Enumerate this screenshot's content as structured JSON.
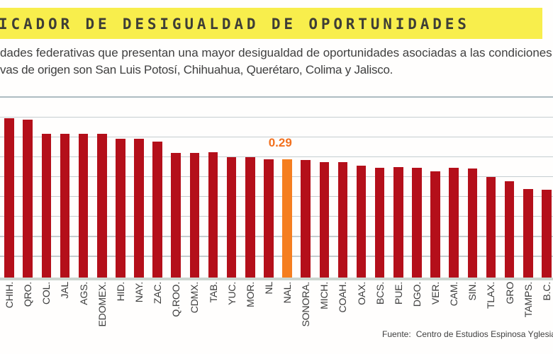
{
  "title": {
    "text": "ICADOR DE DESIGUALDAD DE OPORTUNIDADES",
    "highlight_color": "#F8EE4C",
    "text_color": "#3E3E36"
  },
  "subtitle": {
    "line1": "dades federativas que presentan una mayor desigualdad de oportunidades asociadas a las condiciones",
    "line2": "vas de origen son San Luis Potosí, Chihuahua, Querétaro, Colima y Jalisco."
  },
  "source": {
    "label": "Fuente:",
    "text": "Centro de Estudios Espinosa Yglesias"
  },
  "annotation": {
    "value_label": "0.29",
    "color": "#F2701E"
  },
  "colors": {
    "bar": "#B40F1A",
    "bar_highlight": "#F57E1F",
    "gridline": "#C5CDD0",
    "top_rule": "#AEBCC2",
    "axis_band": "#CCD5CF",
    "title_highlight": "#F8EE4C"
  },
  "chart_data": {
    "type": "bar",
    "title": "ICADOR DE DESIGUALDAD DE OPORTUNIDADES",
    "xlabel": "",
    "ylabel": "",
    "ylim": [
      0,
      0.443
    ],
    "grid": true,
    "legend": false,
    "highlighted_category": "NAL.",
    "highlighted_value": 0.29,
    "categories": [
      "CHIH.",
      "QRO.",
      "COL.",
      "JAL",
      "AGS.",
      "EDOMEX.",
      "HID.",
      "NAY.",
      "ZAC.",
      "Q.ROO.",
      "CDMX.",
      "TAB.",
      "YUC.",
      "MOR.",
      "NL",
      "NAL.",
      "SONORA.",
      "MICH.",
      "COAH.",
      "OAX.",
      "BCS.",
      "PUE.",
      "DGO.",
      "VER.",
      "CAM.",
      "SIN.",
      "TLAX.",
      "GRO",
      "TAMPS.",
      "B.C."
    ],
    "values": [
      0.391,
      0.387,
      0.352,
      0.352,
      0.352,
      0.352,
      0.341,
      0.341,
      0.334,
      0.306,
      0.306,
      0.307,
      0.296,
      0.296,
      0.291,
      0.29,
      0.289,
      0.283,
      0.283,
      0.275,
      0.27,
      0.271,
      0.27,
      0.261,
      0.269,
      0.268,
      0.246,
      0.237,
      0.217,
      0.216
    ]
  }
}
